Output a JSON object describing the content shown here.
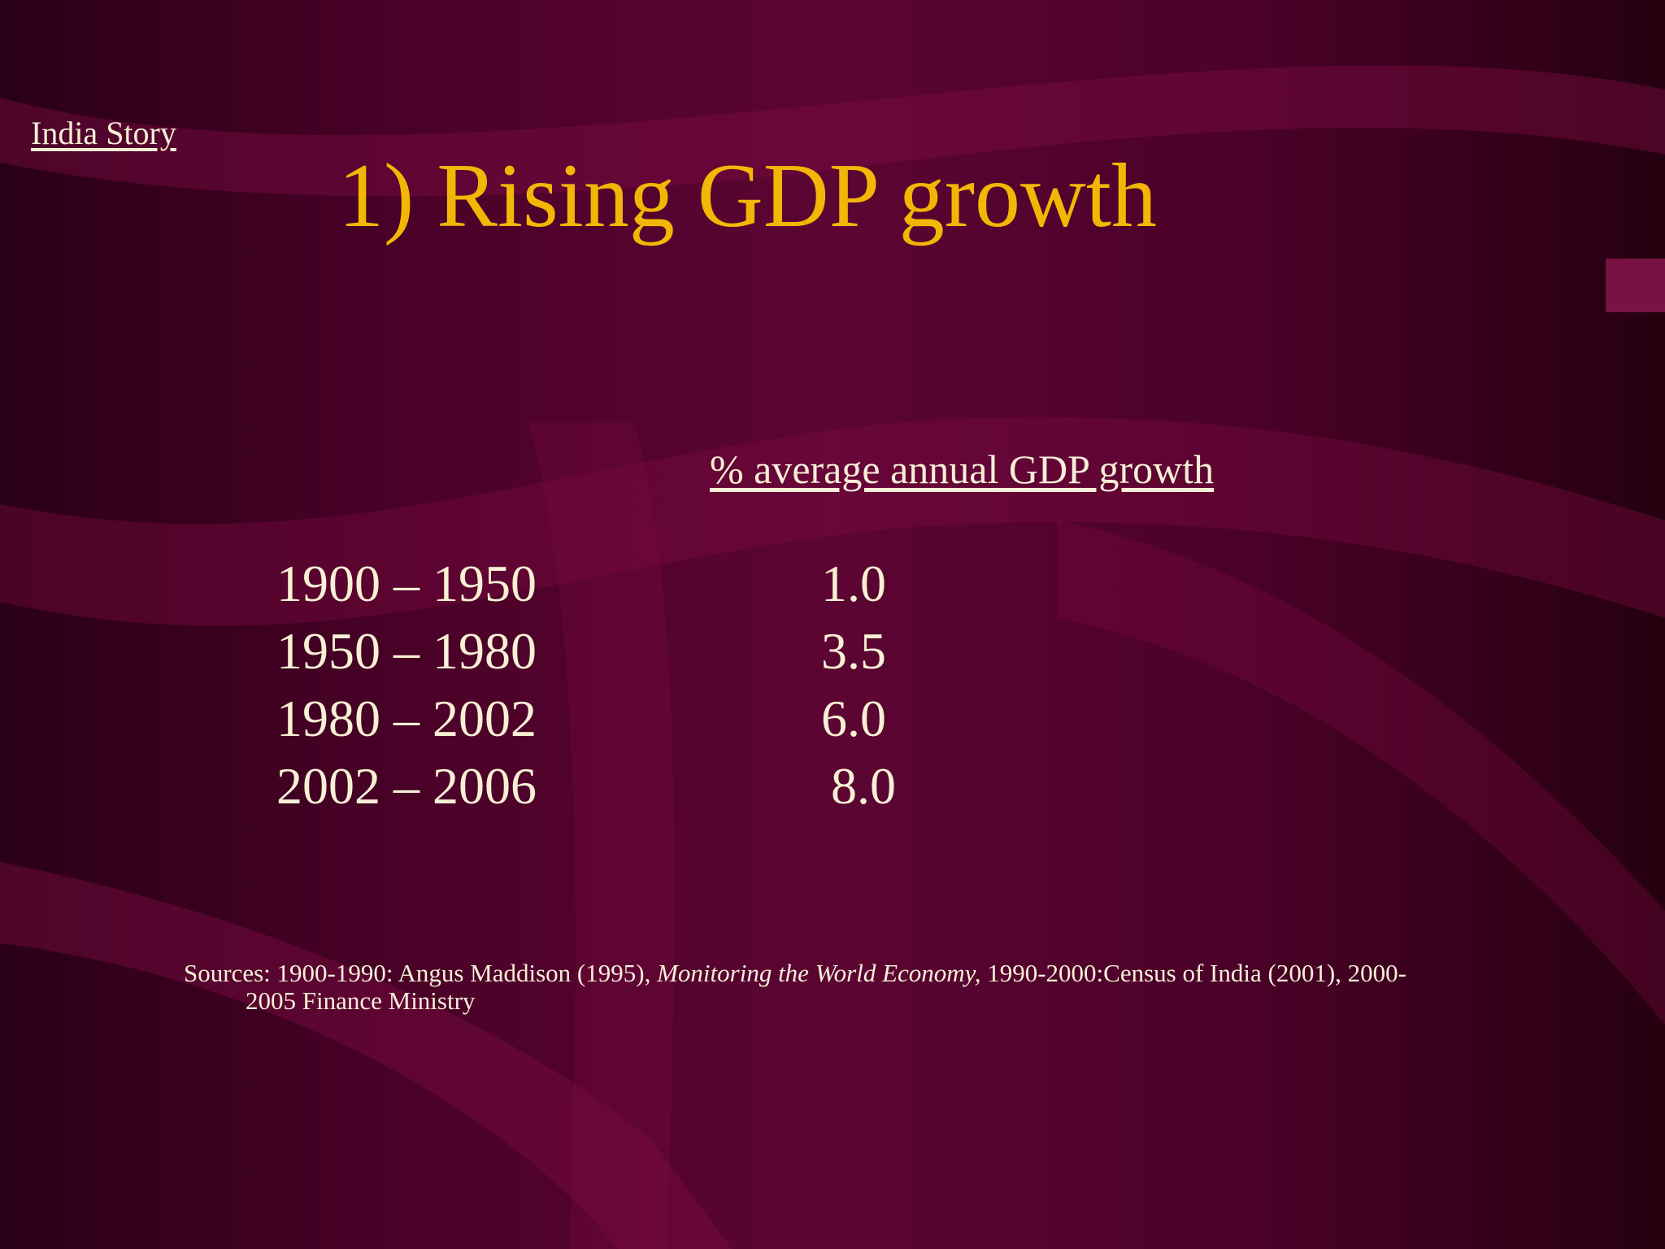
{
  "slide": {
    "nav_link": "India Story",
    "title": "1) Rising GDP growth",
    "column_header": "% average annual GDP growth",
    "rows": [
      {
        "period": "1900 – 1950",
        "growth": "1.0"
      },
      {
        "period": "1950 – 1980",
        "growth": "3.5"
      },
      {
        "period": "1980 – 2002",
        "growth": "6.0"
      },
      {
        "period": "2002 – 2006",
        "growth": "8.0"
      }
    ],
    "sources": {
      "prefix": "Sources: 1900-1990: Angus Maddison (1995), ",
      "italic": "Monitoring the World Economy,",
      "suffix_line1": " 1990-2000:Census of India (2001), 2000-",
      "line2": "2005 Finance Ministry"
    }
  },
  "colors": {
    "background": "#4a0128",
    "title": "#f2b705",
    "text": "#f6eed6",
    "swoosh": "#7a0a42"
  }
}
